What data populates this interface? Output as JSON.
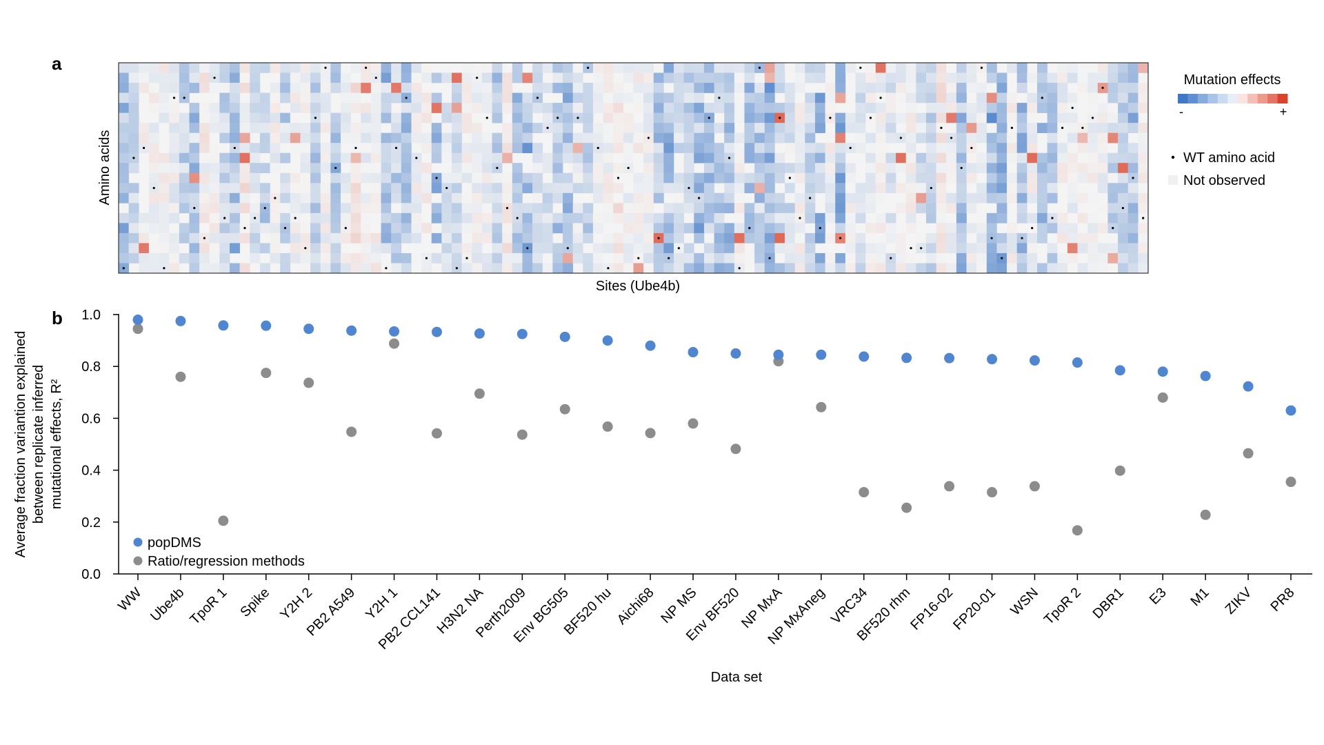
{
  "figure": {
    "panel_a_label": "a",
    "panel_b_label": "b"
  },
  "chart_data": [
    {
      "type": "heatmap",
      "panel": "a",
      "xlabel": "Sites (Ube4b)",
      "ylabel": "Amino acids",
      "n_sites": 102,
      "n_amino_acids": 21,
      "color_scale": {
        "negative": "#3f78c6",
        "neutral": "#f4f4f4",
        "positive": "#d9432c"
      },
      "legend": {
        "title": "Mutation effects",
        "minus_label": "-",
        "plus_label": "+",
        "wt_label": "WT amino acid",
        "not_observed_label": "Not observed",
        "colorbar_swatches": [
          "#3f78c6",
          "#5e8fd0",
          "#86acdc",
          "#a9c4e6",
          "#cadbef",
          "#e6eef8",
          "#fbe3df",
          "#f5bfb5",
          "#ee9a8b",
          "#e57563",
          "#d9432c"
        ]
      }
    },
    {
      "type": "scatter",
      "panel": "b",
      "xlabel": "Data set",
      "ylabel_lines": [
        "Average fraction variantion explained",
        "between replicate inferred",
        "mutational effects, R²"
      ],
      "ylim": [
        0.0,
        1.0
      ],
      "yticks": [
        "0.0",
        "0.2",
        "0.4",
        "0.6",
        "0.8",
        "1.0"
      ],
      "categories": [
        "WW",
        "Ube4b",
        "TpoR 1",
        "Spike",
        "Y2H 2",
        "PB2 A549",
        "Y2H 1",
        "PB2 CCL141",
        "H3N2 NA",
        "Perth2009",
        "Env BG505",
        "BF520 hu",
        "Aichi68",
        "NP MS",
        "Env BF520",
        "NP MxA",
        "NP MxAneg",
        "VRC34",
        "BF520 rhm",
        "FP16-02",
        "FP20-01",
        "WSN",
        "TpoR 2",
        "DBR1",
        "E3",
        "M1",
        "ZIKV",
        "PR8"
      ],
      "series": [
        {
          "name": "popDMS",
          "color": "#4f86cf",
          "values": [
            0.98,
            0.975,
            0.958,
            0.957,
            0.945,
            0.938,
            0.935,
            0.933,
            0.927,
            0.925,
            0.914,
            0.9,
            0.88,
            0.855,
            0.85,
            0.845,
            0.845,
            0.838,
            0.833,
            0.832,
            0.828,
            0.823,
            0.815,
            0.785,
            0.78,
            0.763,
            0.723,
            0.63
          ]
        },
        {
          "name": "Ratio/regression methods",
          "color": "#8c8c8c",
          "values": [
            0.945,
            0.76,
            0.205,
            0.775,
            0.737,
            0.548,
            0.888,
            0.542,
            0.695,
            0.537,
            0.635,
            0.568,
            0.543,
            0.58,
            0.482,
            0.82,
            0.643,
            0.315,
            0.255,
            0.338,
            0.315,
            0.338,
            0.168,
            0.398,
            0.68,
            0.228,
            0.465,
            0.355
          ]
        }
      ],
      "legend_position": "lower-left"
    }
  ]
}
